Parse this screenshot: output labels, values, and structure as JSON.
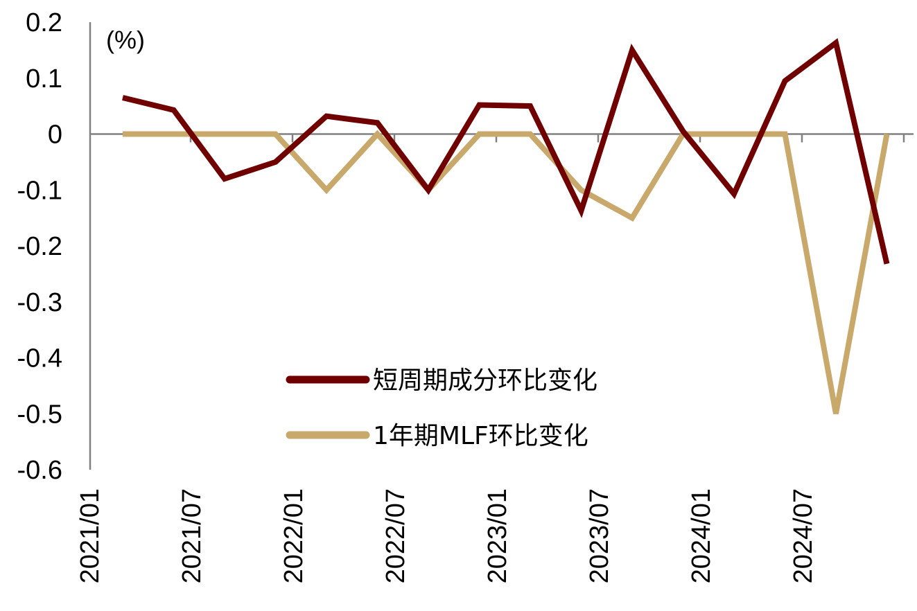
{
  "chart_data": {
    "type": "line",
    "unit_label": "(%)",
    "x_labels": [
      "2021/01",
      "2021/07",
      "2022/01",
      "2022/07",
      "2023/01",
      "2023/07",
      "2024/01",
      "2024/07"
    ],
    "y_ticks": [
      "0.2",
      "0.1",
      "0",
      "-0.1",
      "-0.2",
      "-0.3",
      "-0.4",
      "-0.5",
      "-0.6"
    ],
    "ylim": [
      -0.6,
      0.2
    ],
    "grid": false,
    "legend_position": "lower-center",
    "series": [
      {
        "name": "短周期成分环比变化",
        "color": "#700000",
        "x": [
          "2021/03",
          "2021/06",
          "2021/09",
          "2021/12",
          "2022/03",
          "2022/06",
          "2022/09",
          "2022/12",
          "2023/03",
          "2023/06",
          "2023/09",
          "2023/12",
          "2024/03",
          "2024/06",
          "2024/09",
          "2024/12"
        ],
        "values": [
          0.065,
          0.043,
          -0.08,
          -0.05,
          0.032,
          0.02,
          -0.1,
          0.052,
          0.05,
          -0.137,
          0.15,
          0.005,
          -0.107,
          0.095,
          0.163,
          -0.232
        ]
      },
      {
        "name": "1年期MLF环比变化",
        "color": "#C8A86B",
        "x": [
          "2021/03",
          "2021/06",
          "2021/09",
          "2021/12",
          "2022/03",
          "2022/06",
          "2022/09",
          "2022/12",
          "2023/03",
          "2023/06",
          "2023/09",
          "2023/12",
          "2024/03",
          "2024/06",
          "2024/09",
          "2024/12"
        ],
        "values": [
          0,
          0,
          0,
          0,
          -0.1,
          0,
          -0.1,
          0,
          0,
          -0.1,
          -0.15,
          0,
          0,
          0,
          -0.5,
          0
        ]
      }
    ]
  }
}
